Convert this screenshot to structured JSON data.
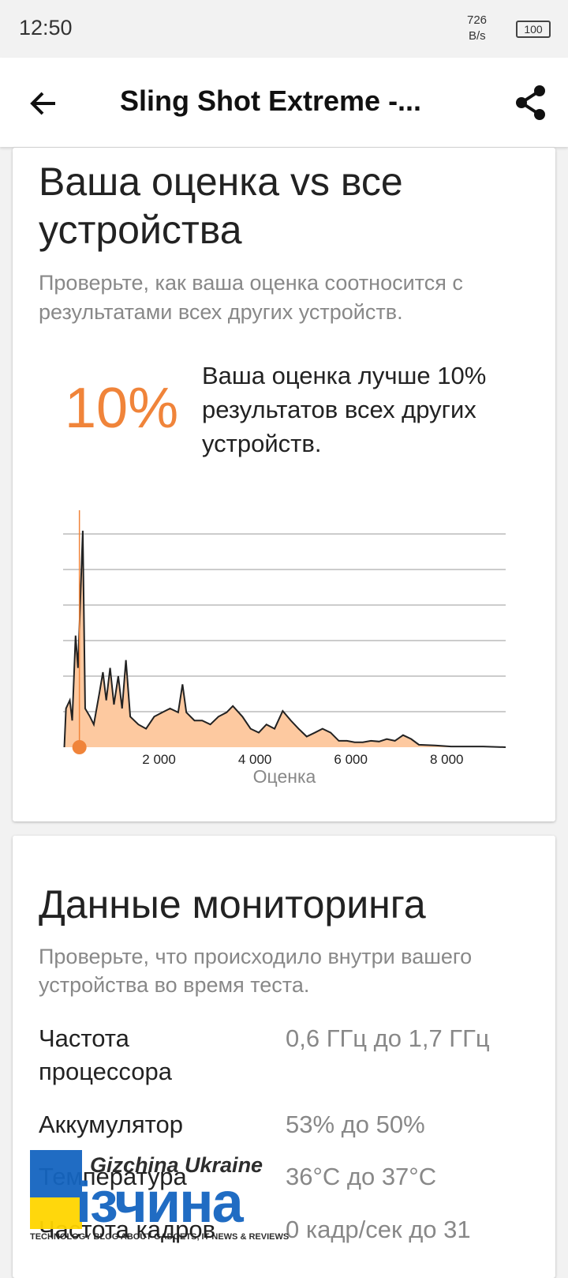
{
  "status_bar": {
    "time": "12:50",
    "net_speed": "726",
    "net_unit": "B/s",
    "battery": "100"
  },
  "toolbar": {
    "title": "Sling Shot Extreme -..."
  },
  "score_card": {
    "title": "Ваша оценка vs все устройства",
    "subtitle": "Проверьте, как ваша оценка соотносится с результатами всех других устройств.",
    "percent": "10%",
    "summary": "Ваша оценка лучше 10% результатов всех других устройств.",
    "chart_data": {
      "type": "area",
      "x_label": "Оценка",
      "x": [
        25,
        60,
        140,
        190,
        260,
        310,
        410,
        460,
        560,
        640,
        760,
        830,
        900,
        980,
        1060,
        1150,
        1230,
        1310,
        1400,
        1570,
        1730,
        1900,
        2070,
        2230,
        2400,
        2490,
        2570,
        2740,
        2900,
        3070,
        3240,
        3410,
        3540,
        3740,
        3910,
        4080,
        4240,
        4410,
        4580,
        4750,
        4910,
        5080,
        5250,
        5410,
        5580,
        5750,
        5920,
        6080,
        6250,
        6420,
        6590,
        6750,
        6920,
        7090,
        7260,
        7420,
        7760,
        8090,
        8760,
        9230
      ],
      "values": [
        0,
        1.09,
        1.32,
        0.75,
        3.14,
        2.23,
        6.09,
        1.09,
        0.86,
        0.64,
        1.55,
        2.11,
        1.32,
        2.23,
        1.2,
        2.0,
        1.09,
        2.45,
        0.86,
        0.64,
        0.52,
        0.86,
        0.98,
        1.09,
        0.98,
        1.77,
        0.98,
        0.75,
        0.75,
        0.64,
        0.86,
        0.98,
        1.16,
        0.86,
        0.52,
        0.41,
        0.64,
        0.52,
        1.02,
        0.75,
        0.52,
        0.3,
        0.41,
        0.52,
        0.41,
        0.18,
        0.18,
        0.14,
        0.14,
        0.18,
        0.16,
        0.23,
        0.18,
        0.34,
        0.23,
        0.07,
        0.05,
        0.02,
        0.02,
        0
      ],
      "highlight_x": 340,
      "xlim": [
        0,
        9230
      ],
      "ylim": [
        0,
        6
      ],
      "xticks": [
        {
          "value": 2000,
          "label": "2 000"
        },
        {
          "value": 4000,
          "label": "4 000"
        },
        {
          "value": 6000,
          "label": "6 000"
        },
        {
          "value": 8000,
          "label": "8 000"
        }
      ],
      "yticks": [
        1,
        2,
        3,
        4,
        5,
        6
      ],
      "grid": true,
      "color": "#fdc9a0",
      "line_color": "#222222",
      "highlight_color": "#f0843a"
    }
  },
  "monitor_card": {
    "title": "Данные мониторинга",
    "subtitle": "Проверьте, что происходило внутри вашего устройства во время теста.",
    "rows": [
      [
        "Частота процессора",
        "0,6 ГГц до 1,7 ГГц"
      ],
      [
        "Аккумулятор",
        "53% до 50%"
      ],
      [
        "Температура",
        "36°C до 37°C"
      ],
      [
        "Частота кадров",
        "0 кадр/сек до 31"
      ]
    ]
  },
  "watermark": {
    "brand": "Gizchina Ukraine",
    "logo": "ізчина",
    "tagline": "TECHNOLOGY BLOG ABOUT GADGETS, IT-NEWS & REVIEWS"
  }
}
